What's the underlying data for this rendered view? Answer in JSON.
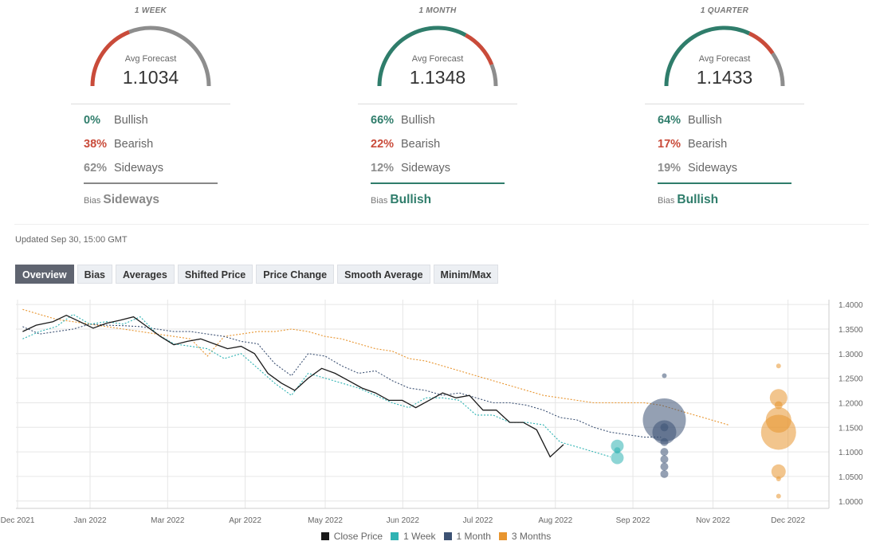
{
  "cards": [
    {
      "label": "1 WEEK",
      "avg_label": "Avg Forecast",
      "avg_value": "1.1034",
      "bullish_pct": "0%",
      "bullish_label": "Bullish",
      "bearish_pct": "38%",
      "bearish_label": "Bearish",
      "sideways_pct": "62%",
      "sideways_label": "Sideways",
      "bias_label": "Bias",
      "bias_value": "Sideways",
      "bias_color": "#888888",
      "bullish": 0,
      "bearish": 38,
      "sideways": 62
    },
    {
      "label": "1 MONTH",
      "avg_label": "Avg Forecast",
      "avg_value": "1.1348",
      "bullish_pct": "66%",
      "bullish_label": "Bullish",
      "bearish_pct": "22%",
      "bearish_label": "Bearish",
      "sideways_pct": "12%",
      "sideways_label": "Sideways",
      "bias_label": "Bias",
      "bias_value": "Bullish",
      "bias_color": "#2f7d6b",
      "bullish": 66,
      "bearish": 22,
      "sideways": 12
    },
    {
      "label": "1 QUARTER",
      "avg_label": "Avg Forecast",
      "avg_value": "1.1433",
      "bullish_pct": "64%",
      "bullish_label": "Bullish",
      "bearish_pct": "17%",
      "bearish_label": "Bearish",
      "sideways_pct": "19%",
      "sideways_label": "Sideways",
      "bias_label": "Bias",
      "bias_value": "Bullish",
      "bias_color": "#2f7d6b",
      "bullish": 64,
      "bearish": 17,
      "sideways": 19
    }
  ],
  "colors": {
    "bullish": "#2f7d6b",
    "bearish": "#c94b3a",
    "sideways": "#8d8d8d"
  },
  "updated": "Updated Sep 30, 15:00 GMT",
  "tabs": [
    "Overview",
    "Bias",
    "Averages",
    "Shifted Price",
    "Price Change",
    "Smooth Average",
    "Minim/Max"
  ],
  "active_tab": "Overview",
  "chart_data": {
    "type": "line",
    "x_tick_labels": [
      "Dec 2021",
      "Jan 2022",
      "Mar 2022",
      "Apr 2022",
      "May 2022",
      "Jun 2022",
      "Jul 2022",
      "Aug 2022",
      "Sep 2022",
      "Nov 2022",
      "Dec 2022"
    ],
    "y_tick_labels": [
      "1.4000",
      "1.3500",
      "1.3000",
      "1.2500",
      "1.2000",
      "1.1500",
      "1.1000",
      "1.0500",
      "1.0000"
    ],
    "ylim": [
      0.985,
      1.41
    ],
    "y_axis_side": "right",
    "grid": true,
    "legend_position": "bottom",
    "series": [
      {
        "name": "Close Price",
        "color": "#1a1a1a",
        "style": "solid",
        "x": [
          0,
          0.4,
          0.9,
          1.3,
          1.7,
          2.1,
          2.5,
          2.9,
          3.3,
          3.7,
          4.1,
          4.5,
          4.9,
          5.3,
          5.7,
          6.1,
          6.5,
          6.9,
          7.3,
          7.7,
          8.1,
          8.5,
          8.9,
          9.3,
          9.7,
          10.1,
          10.5,
          10.9,
          11.3,
          11.7,
          12.1,
          12.5,
          12.9,
          13.3,
          13.7,
          14.1,
          14.5,
          14.9,
          15.3,
          15.7,
          16.1,
          16.5,
          16.9,
          17.3,
          17.7,
          18.1,
          18.5,
          18.9,
          19.3
        ],
        "y": [
          1.345,
          1.358,
          1.365,
          1.378,
          1.365,
          1.352,
          1.362,
          1.368,
          1.375,
          1.355,
          1.335,
          1.318,
          1.325,
          1.33,
          1.32,
          1.31,
          1.315,
          1.3,
          1.26,
          1.24,
          1.225,
          1.25,
          1.27,
          1.26,
          1.245,
          1.23,
          1.22,
          1.205,
          1.205,
          1.19,
          1.205,
          1.22,
          1.21,
          1.215,
          1.185,
          1.185,
          1.16,
          1.16,
          1.145,
          1.09,
          1.115,
          null,
          null,
          null,
          null,
          null,
          null,
          null,
          null
        ]
      },
      {
        "name": "1 Week",
        "color": "#2fb3b3",
        "style": "dotted",
        "x": [
          0,
          0.5,
          1,
          1.5,
          2,
          2.5,
          3,
          3.5,
          4,
          4.5,
          5,
          5.5,
          6,
          6.5,
          7,
          7.5,
          8,
          8.5,
          9,
          9.5,
          10,
          10.5,
          11,
          11.5,
          12,
          12.5,
          13,
          13.5,
          14,
          14.5,
          15,
          15.5,
          16,
          16.5,
          17,
          17.5
        ],
        "y": [
          1.33,
          1.345,
          1.355,
          1.38,
          1.36,
          1.365,
          1.36,
          1.375,
          1.34,
          1.32,
          1.315,
          1.31,
          1.29,
          1.3,
          1.27,
          1.24,
          1.215,
          1.26,
          1.25,
          1.24,
          1.23,
          1.215,
          1.2,
          1.19,
          1.21,
          1.21,
          1.205,
          1.175,
          1.175,
          1.16,
          1.16,
          1.155,
          1.12,
          1.11,
          1.1,
          1.09
        ]
      },
      {
        "name": "1 Month",
        "color": "#3d5274",
        "style": "dotted",
        "x": [
          0,
          0.5,
          1,
          1.5,
          2,
          2.5,
          3,
          3.5,
          4,
          4.5,
          5,
          5.5,
          6,
          6.5,
          7,
          7.5,
          8,
          8.5,
          9,
          9.5,
          10,
          10.5,
          11,
          11.5,
          12,
          12.5,
          13,
          13.5,
          14,
          14.5,
          15,
          15.5,
          16,
          16.5,
          17,
          17.5,
          18,
          18.5,
          19
        ],
        "y": [
          1.355,
          1.34,
          1.345,
          1.35,
          1.36,
          1.358,
          1.357,
          1.355,
          1.35,
          1.345,
          1.345,
          1.34,
          1.335,
          1.325,
          1.32,
          1.28,
          1.255,
          1.3,
          1.295,
          1.275,
          1.26,
          1.265,
          1.245,
          1.23,
          1.225,
          1.215,
          1.22,
          1.21,
          1.2,
          1.2,
          1.195,
          1.185,
          1.17,
          1.165,
          1.15,
          1.14,
          1.135,
          1.13,
          1.13
        ]
      },
      {
        "name": "3 Months",
        "color": "#e8952f",
        "style": "dotted",
        "x": [
          0,
          0.5,
          1,
          1.5,
          2,
          2.5,
          3,
          3.5,
          4,
          4.5,
          5,
          5.5,
          6,
          6.5,
          7,
          7.5,
          8,
          8.5,
          9,
          9.5,
          10,
          10.5,
          11,
          11.5,
          12,
          12.5,
          13,
          13.5,
          14,
          14.5,
          15,
          15.5,
          16,
          16.5,
          17,
          17.5,
          18,
          18.5,
          19,
          19.5,
          20,
          20.5,
          21
        ],
        "y": [
          1.39,
          1.38,
          1.37,
          1.365,
          1.36,
          1.355,
          1.35,
          1.345,
          1.34,
          1.335,
          1.33,
          1.295,
          1.335,
          1.34,
          1.345,
          1.345,
          1.35,
          1.345,
          1.335,
          1.33,
          1.32,
          1.31,
          1.305,
          1.29,
          1.285,
          1.275,
          1.265,
          1.255,
          1.245,
          1.235,
          1.225,
          1.215,
          1.21,
          1.205,
          1.2,
          1.2,
          1.2,
          1.2,
          1.195,
          1.185,
          1.175,
          1.165,
          1.155
        ]
      }
    ],
    "bubbles": [
      {
        "series": "1 Week",
        "x": 17.7,
        "y": 1.112,
        "r": 8
      },
      {
        "series": "1 Week",
        "x": 17.7,
        "y": 1.088,
        "r": 8
      },
      {
        "series": "1 Week",
        "x": 17.7,
        "y": 1.103,
        "r": 4
      },
      {
        "series": "1 Month",
        "x": 19.1,
        "y": 1.165,
        "r": 27
      },
      {
        "series": "1 Month",
        "x": 19.1,
        "y": 1.14,
        "r": 15
      },
      {
        "series": "1 Month",
        "x": 19.1,
        "y": 1.255,
        "r": 3
      },
      {
        "series": "1 Month",
        "x": 19.1,
        "y": 1.15,
        "r": 5
      },
      {
        "series": "1 Month",
        "x": 19.1,
        "y": 1.12,
        "r": 5
      },
      {
        "series": "1 Month",
        "x": 19.1,
        "y": 1.1,
        "r": 5
      },
      {
        "series": "1 Month",
        "x": 19.1,
        "y": 1.085,
        "r": 5
      },
      {
        "series": "1 Month",
        "x": 19.1,
        "y": 1.07,
        "r": 5
      },
      {
        "series": "1 Month",
        "x": 19.1,
        "y": 1.055,
        "r": 5
      },
      {
        "series": "3 Months",
        "x": 22.5,
        "y": 1.21,
        "r": 11
      },
      {
        "series": "3 Months",
        "x": 22.5,
        "y": 1.165,
        "r": 16
      },
      {
        "series": "3 Months",
        "x": 22.5,
        "y": 1.14,
        "r": 22
      },
      {
        "series": "3 Months",
        "x": 22.5,
        "y": 1.195,
        "r": 5
      },
      {
        "series": "3 Months",
        "x": 22.5,
        "y": 1.06,
        "r": 9
      },
      {
        "series": "3 Months",
        "x": 22.5,
        "y": 1.275,
        "r": 3
      },
      {
        "series": "3 Months",
        "x": 22.5,
        "y": 1.01,
        "r": 3
      },
      {
        "series": "3 Months",
        "x": 22.5,
        "y": 1.045,
        "r": 3
      }
    ]
  }
}
